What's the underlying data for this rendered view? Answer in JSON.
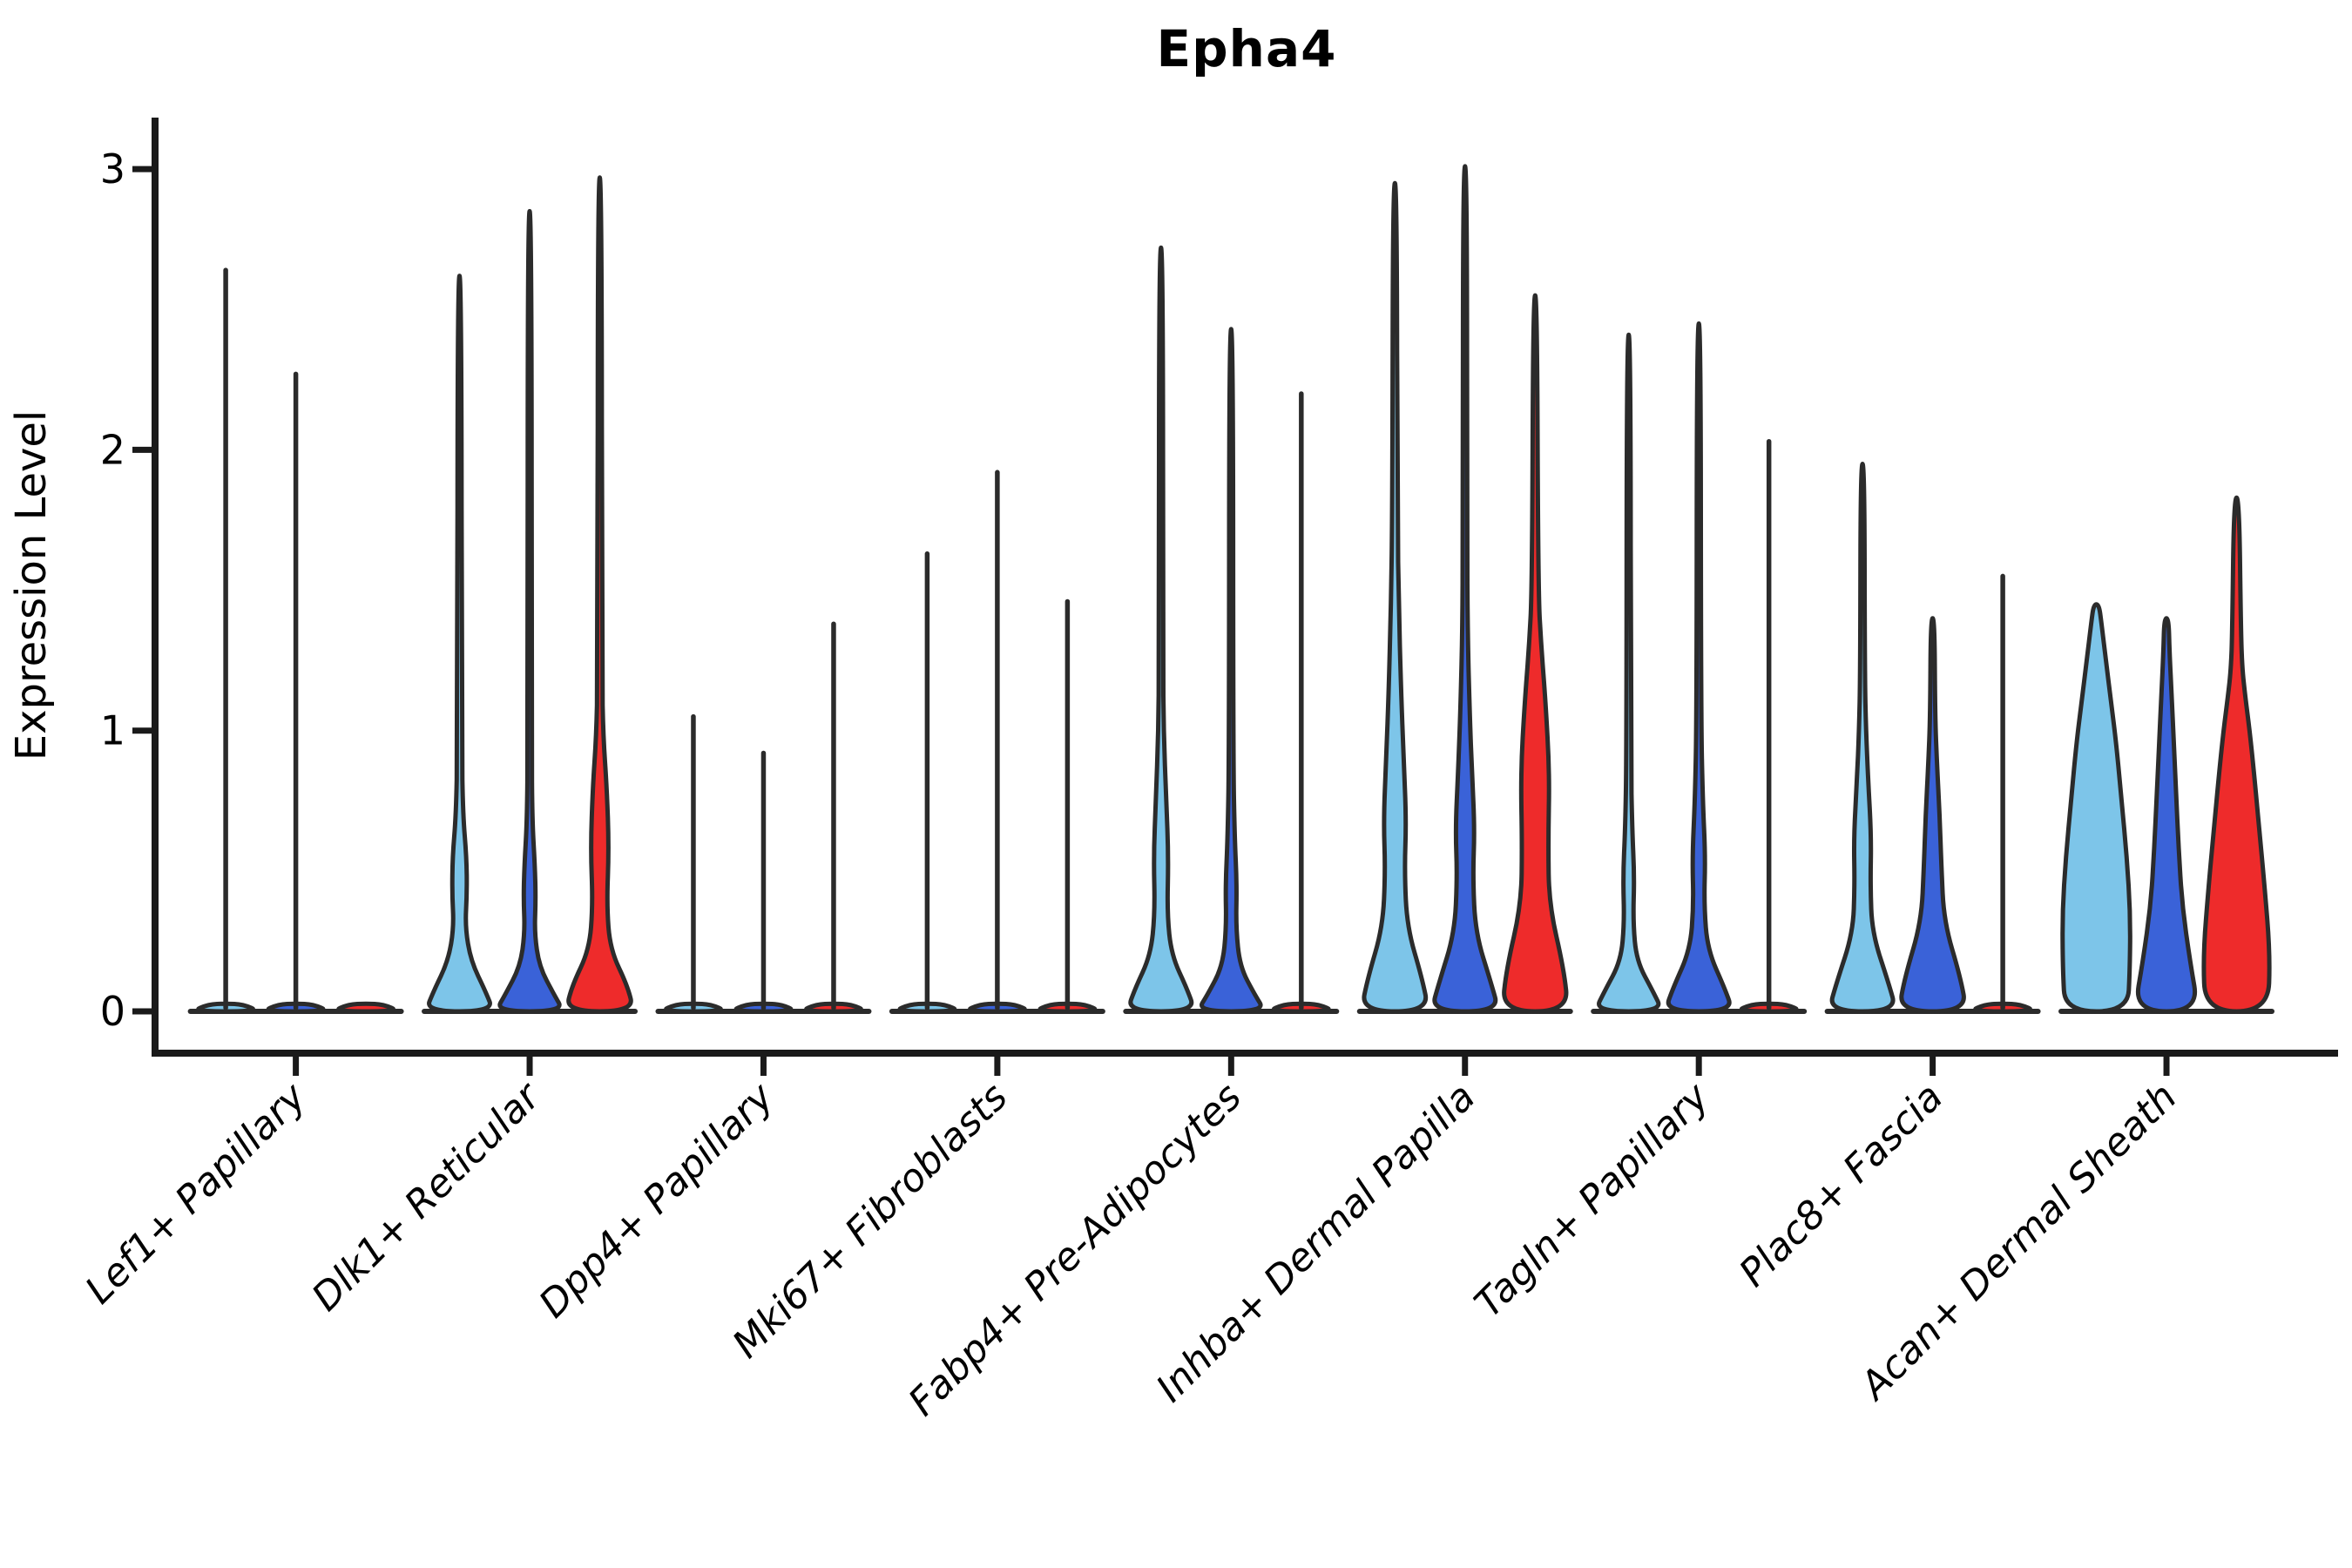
{
  "title": "Epha4",
  "axes": {
    "ylabel": "Expression Level",
    "ytick_labels": [
      "0",
      "1",
      "2",
      "3"
    ]
  },
  "colors": {
    "light_blue": "#7DC5E9",
    "dark_blue": "#3A62D8",
    "red": "#EE2B2B",
    "violin_outline": "#2B2B2B",
    "axis_color": "#1A1A1A",
    "text_color": "#000000",
    "background": "#FFFFFF"
  },
  "chart_data": {
    "type": "violin",
    "title": "Epha4",
    "xlabel": "",
    "ylabel": "Expression Level",
    "ylim": [
      0,
      3.15
    ],
    "yticks": [
      0,
      1,
      2,
      3
    ],
    "grid": false,
    "legend": "none",
    "categories": [
      "Lef1+ Papillary",
      "Dlk1+ Reticular",
      "Dpp4+ Papillary",
      "Mki67+ Fibroblasts",
      "Fabp4+ Pre-Adipocytes",
      "Inhba+ Dermal Papilla",
      "Tagln+ Papillary",
      "Plac8+ Fascia",
      "Acan+ Dermal Sheath"
    ],
    "series": [
      {
        "name": "violin-1",
        "color": "#7DC5E9",
        "max_expression": [
          2.64,
          2.62,
          1.05,
          1.63,
          2.72,
          2.95,
          2.41,
          1.95,
          1.45
        ]
      },
      {
        "name": "violin-2",
        "color": "#3A62D8",
        "max_expression": [
          2.27,
          2.85,
          0.92,
          1.92,
          2.43,
          3.01,
          2.45,
          1.4,
          1.4
        ]
      },
      {
        "name": "violin-3",
        "color": "#EE2B2B",
        "max_expression": [
          0.05,
          2.97,
          1.38,
          1.46,
          2.2,
          2.55,
          2.03,
          1.55,
          1.83
        ]
      }
    ],
    "violins": [
      {
        "category": "Lef1+ Papillary",
        "items": [
          {
            "series": 0,
            "max": 2.64,
            "profile": "flat"
          },
          {
            "series": 1,
            "max": 2.27,
            "profile": "flat"
          },
          {
            "series": 2,
            "max": 0.05,
            "profile": "flat"
          }
        ]
      },
      {
        "category": "Dlk1+ Reticular",
        "items": [
          {
            "series": 0,
            "max": 2.62,
            "profile": [
              [
                0,
                39
              ],
              [
                0.07,
                30
              ],
              [
                0.18,
                13
              ],
              [
                0.3,
                6.5
              ],
              [
                0.42,
                8.5
              ],
              [
                0.55,
                8
              ],
              [
                0.7,
                4
              ],
              [
                0.95,
                2.5
              ],
              [
                2.62,
                2.2
              ]
            ]
          },
          {
            "series": 1,
            "max": 2.85,
            "profile": [
              [
                0,
                39
              ],
              [
                0.06,
                28
              ],
              [
                0.16,
                11
              ],
              [
                0.28,
                5.5
              ],
              [
                0.4,
                7
              ],
              [
                0.52,
                6
              ],
              [
                0.68,
                3
              ],
              [
                0.95,
                2.3
              ],
              [
                2.85,
                2.2
              ]
            ]
          },
          {
            "series": 2,
            "max": 2.97,
            "profile": [
              [
                0,
                39
              ],
              [
                0.09,
                32
              ],
              [
                0.22,
                12
              ],
              [
                0.38,
                8
              ],
              [
                0.58,
                10.5
              ],
              [
                0.8,
                8
              ],
              [
                0.98,
                4
              ],
              [
                1.2,
                2.5
              ],
              [
                2.97,
                2.2
              ]
            ]
          }
        ]
      },
      {
        "category": "Dpp4+ Papillary",
        "items": [
          {
            "series": 0,
            "max": 1.05,
            "profile": "flat"
          },
          {
            "series": 1,
            "max": 0.92,
            "profile": "flat"
          },
          {
            "series": 2,
            "max": 1.38,
            "profile": "flat"
          }
        ]
      },
      {
        "category": "Mki67+ Fibroblasts",
        "items": [
          {
            "series": 0,
            "max": 1.63,
            "profile": "flat"
          },
          {
            "series": 1,
            "max": 1.92,
            "profile": "flat"
          },
          {
            "series": 2,
            "max": 1.46,
            "profile": "flat"
          }
        ]
      },
      {
        "category": "Fabp4+ Pre-Adipocytes",
        "items": [
          {
            "series": 0,
            "max": 2.72,
            "profile": [
              [
                0,
                39
              ],
              [
                0.08,
                30
              ],
              [
                0.2,
                12
              ],
              [
                0.35,
                7
              ],
              [
                0.55,
                8.5
              ],
              [
                0.75,
                6
              ],
              [
                1.0,
                3
              ],
              [
                1.25,
                2.4
              ],
              [
                2.72,
                2.2
              ]
            ]
          },
          {
            "series": 1,
            "max": 2.43,
            "profile": [
              [
                0,
                39
              ],
              [
                0.06,
                27
              ],
              [
                0.16,
                10
              ],
              [
                0.3,
                5.5
              ],
              [
                0.45,
                6.5
              ],
              [
                0.62,
                4
              ],
              [
                0.9,
                2.4
              ],
              [
                2.43,
                2.2
              ]
            ]
          },
          {
            "series": 2,
            "max": 2.2,
            "profile": "flat"
          }
        ]
      },
      {
        "category": "Inhba+ Dermal Papilla",
        "items": [
          {
            "series": 0,
            "max": 2.95,
            "profile": [
              [
                0,
                39
              ],
              [
                0.12,
                31
              ],
              [
                0.3,
                14
              ],
              [
                0.5,
                11
              ],
              [
                0.68,
                13
              ],
              [
                0.9,
                10
              ],
              [
                1.15,
                7
              ],
              [
                1.45,
                4.5
              ],
              [
                1.75,
                3
              ],
              [
                2.95,
                2.2
              ]
            ]
          },
          {
            "series": 1,
            "max": 3.01,
            "profile": [
              [
                0,
                39
              ],
              [
                0.1,
                30
              ],
              [
                0.28,
                12
              ],
              [
                0.48,
                9
              ],
              [
                0.65,
                11
              ],
              [
                0.85,
                8
              ],
              [
                1.05,
                5.5
              ],
              [
                1.35,
                3
              ],
              [
                1.7,
                2.4
              ],
              [
                3.01,
                2.2
              ]
            ]
          },
          {
            "series": 2,
            "max": 2.55,
            "profile": [
              [
                0,
                38
              ],
              [
                0.15,
                33
              ],
              [
                0.38,
                16
              ],
              [
                0.6,
                15
              ],
              [
                0.85,
                16.5
              ],
              [
                1.1,
                12
              ],
              [
                1.3,
                7
              ],
              [
                1.5,
                3.5
              ],
              [
                2.55,
                2.2
              ]
            ]
          }
        ]
      },
      {
        "category": "Tagln+ Papillary",
        "items": [
          {
            "series": 0,
            "max": 2.41,
            "profile": [
              [
                0,
                39
              ],
              [
                0.07,
                28
              ],
              [
                0.18,
                9
              ],
              [
                0.32,
                5
              ],
              [
                0.48,
                6.5
              ],
              [
                0.65,
                4
              ],
              [
                0.9,
                2.5
              ],
              [
                2.41,
                2.2
              ]
            ]
          },
          {
            "series": 1,
            "max": 2.45,
            "profile": [
              [
                0,
                39
              ],
              [
                0.08,
                30
              ],
              [
                0.22,
                10
              ],
              [
                0.38,
                6
              ],
              [
                0.55,
                7.5
              ],
              [
                0.75,
                4.5
              ],
              [
                1.05,
                2.5
              ],
              [
                2.45,
                2.2
              ]
            ]
          },
          {
            "series": 2,
            "max": 2.03,
            "profile": "flat"
          }
        ]
      },
      {
        "category": "Plac8+ Fascia",
        "items": [
          {
            "series": 0,
            "max": 1.95,
            "profile": [
              [
                0,
                39
              ],
              [
                0.1,
                30
              ],
              [
                0.28,
                11
              ],
              [
                0.45,
                9
              ],
              [
                0.62,
                10
              ],
              [
                0.82,
                6.5
              ],
              [
                1.0,
                4
              ],
              [
                1.2,
                2.6
              ],
              [
                1.95,
                2.2
              ]
            ]
          },
          {
            "series": 1,
            "max": 1.4,
            "profile": [
              [
                0,
                39
              ],
              [
                0.12,
                32
              ],
              [
                0.32,
                13
              ],
              [
                0.52,
                10
              ],
              [
                0.7,
                8
              ],
              [
                0.88,
                5
              ],
              [
                1.05,
                2.8
              ],
              [
                1.4,
                2.2
              ]
            ]
          },
          {
            "series": 2,
            "max": 1.55,
            "profile": "flat"
          }
        ]
      },
      {
        "category": "Acan+ Dermal Sheath",
        "items": [
          {
            "series": 0,
            "max": 1.45,
            "profile": [
              [
                0,
                36
              ],
              [
                0.15,
                38.5
              ],
              [
                0.35,
                39
              ],
              [
                0.55,
                35
              ],
              [
                0.75,
                29
              ],
              [
                0.95,
                23
              ],
              [
                1.1,
                17
              ],
              [
                1.25,
                11
              ],
              [
                1.38,
                6
              ],
              [
                1.45,
                3
              ]
            ]
          },
          {
            "series": 1,
            "max": 1.4,
            "profile": [
              [
                0,
                37
              ],
              [
                0.18,
                27
              ],
              [
                0.38,
                18
              ],
              [
                0.58,
                14
              ],
              [
                0.78,
                11
              ],
              [
                0.95,
                8.5
              ],
              [
                1.12,
                6
              ],
              [
                1.28,
                3.5
              ],
              [
                1.4,
                2.5
              ]
            ]
          },
          {
            "series": 2,
            "max": 1.83,
            "profile": [
              [
                0,
                36
              ],
              [
                0.2,
                38.5
              ],
              [
                0.45,
                32
              ],
              [
                0.65,
                26
              ],
              [
                0.85,
                20
              ],
              [
                1.0,
                15
              ],
              [
                1.12,
                10
              ],
              [
                1.22,
                6.5
              ],
              [
                1.35,
                5
              ],
              [
                1.83,
                3
              ]
            ]
          }
        ]
      }
    ]
  }
}
